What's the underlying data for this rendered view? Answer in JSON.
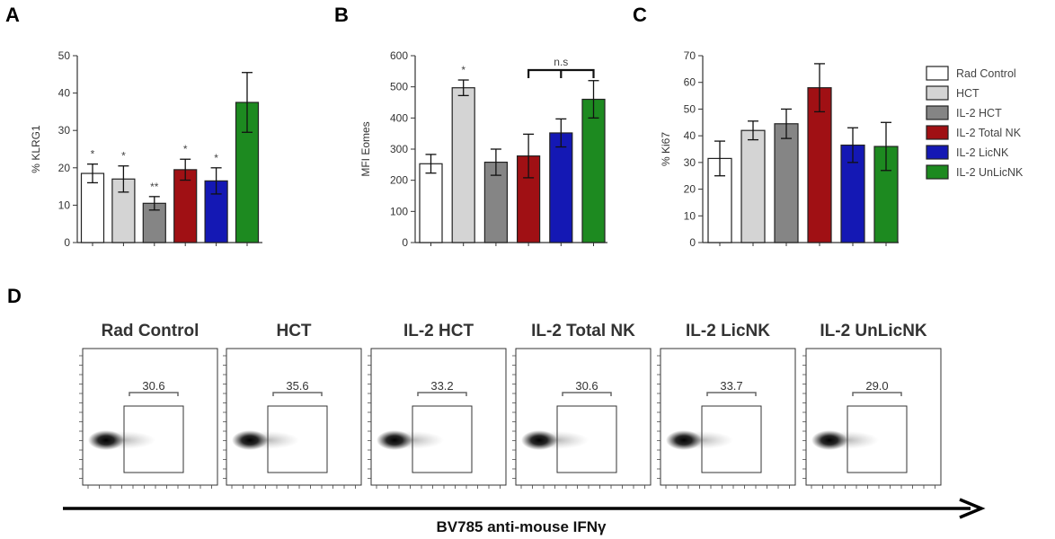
{
  "figure": {
    "panel_labels": [
      "A",
      "B",
      "C",
      "D"
    ]
  },
  "legend": {
    "items": [
      {
        "label": "Rad Control",
        "color": "#ffffff"
      },
      {
        "label": "HCT",
        "color": "#d4d4d4"
      },
      {
        "label": "IL-2 HCT",
        "color": "#858585"
      },
      {
        "label": "IL-2 Total NK",
        "color": "#a01014"
      },
      {
        "label": "IL-2 LicNK",
        "color": "#1418b4"
      },
      {
        "label": "IL-2 UnLicNK",
        "color": "#1d8a20"
      }
    ]
  },
  "chart_data": [
    {
      "panel": "A",
      "type": "bar",
      "categories": [
        "Rad Control",
        "HCT",
        "IL-2 HCT",
        "IL-2 Total NK",
        "IL-2 LicNK",
        "IL-2 UnLicNK"
      ],
      "values": [
        18.5,
        17.0,
        10.5,
        19.5,
        16.5,
        37.5
      ],
      "errors": [
        2.5,
        3.5,
        1.8,
        2.8,
        3.5,
        8.0
      ],
      "significance": [
        "*",
        "*",
        "**",
        "*",
        "*",
        ""
      ],
      "ylabel": "% KLRG1",
      "ylim": [
        0,
        50
      ],
      "yticks": [
        0,
        10,
        20,
        30,
        40,
        50
      ],
      "ytick_labels": [
        "0",
        "10",
        "20",
        "30",
        "40",
        "50"
      ]
    },
    {
      "panel": "B",
      "type": "bar",
      "categories": [
        "Rad Control",
        "HCT",
        "IL-2 HCT",
        "IL-2 Total NK",
        "IL-2 LicNK",
        "IL-2 UnLicNK"
      ],
      "values": [
        253,
        497,
        258,
        278,
        352,
        460
      ],
      "errors": [
        30,
        25,
        42,
        70,
        45,
        60
      ],
      "significance": [
        "",
        "*",
        "",
        "",
        "",
        ""
      ],
      "bracket": {
        "from": 3,
        "to": 5,
        "label": "n.s"
      },
      "ylabel": "MFI Eomes",
      "ylim": [
        0,
        600
      ],
      "yticks": [
        0,
        100,
        200,
        300,
        400,
        500,
        600
      ],
      "ytick_labels": [
        "0",
        "100",
        "200",
        "300",
        "400",
        "500",
        "600"
      ]
    },
    {
      "panel": "C",
      "type": "bar",
      "categories": [
        "Rad Control",
        "HCT",
        "IL-2 HCT",
        "IL-2 Total NK",
        "IL-2 LicNK",
        "IL-2 UnLicNK"
      ],
      "values": [
        31.5,
        42.0,
        44.5,
        58.0,
        36.5,
        36.0
      ],
      "errors": [
        6.5,
        3.5,
        5.5,
        9.0,
        6.5,
        9.0
      ],
      "significance": [
        "",
        "",
        "",
        "",
        "",
        ""
      ],
      "ylabel": "% Ki67",
      "ylim": [
        0,
        70
      ],
      "yticks": [
        0,
        10,
        20,
        30,
        40,
        50,
        60,
        70
      ],
      "ytick_labels": [
        "0",
        "10",
        "20",
        "30",
        "40",
        "50",
        "60",
        "70"
      ]
    },
    {
      "panel": "D",
      "type": "flow-cytometry",
      "titles": [
        "Rad Control",
        "HCT",
        "IL-2 HCT",
        "IL-2 Total NK",
        "IL-2 LicNK",
        "IL-2 UnLicNK"
      ],
      "gate_values": [
        "30.6",
        "35.6",
        "33.2",
        "30.6",
        "33.7",
        "29.0"
      ],
      "xlabel": "BV785 anti-mouse IFNγ"
    }
  ]
}
